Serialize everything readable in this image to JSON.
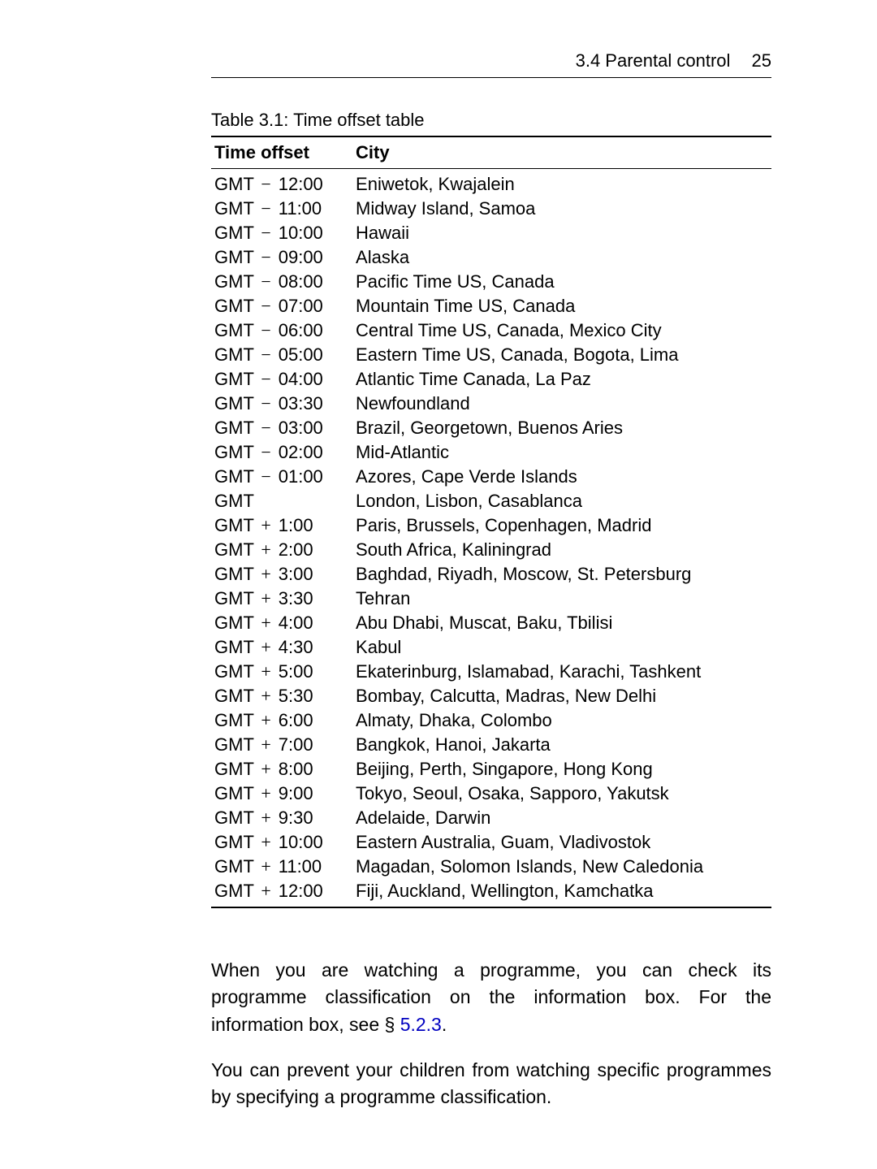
{
  "running_head": {
    "section": "3.4 Parental control",
    "page": "25"
  },
  "table": {
    "caption": "Table 3.1: Time offset table",
    "headers": {
      "offset": "Time offset",
      "city": "City"
    },
    "rows": [
      {
        "prefix": "GMT",
        "op": "−",
        "time": "12:00",
        "city": "Eniwetok, Kwajalein"
      },
      {
        "prefix": "GMT",
        "op": "−",
        "time": "11:00",
        "city": "Midway Island, Samoa"
      },
      {
        "prefix": "GMT",
        "op": "−",
        "time": "10:00",
        "city": "Hawaii"
      },
      {
        "prefix": "GMT",
        "op": "−",
        "time": "09:00",
        "city": "Alaska"
      },
      {
        "prefix": "GMT",
        "op": "−",
        "time": "08:00",
        "city": "Pacific Time US, Canada"
      },
      {
        "prefix": "GMT",
        "op": "−",
        "time": "07:00",
        "city": "Mountain Time US, Canada"
      },
      {
        "prefix": "GMT",
        "op": "−",
        "time": "06:00",
        "city": "Central Time US, Canada, Mexico City"
      },
      {
        "prefix": "GMT",
        "op": "−",
        "time": "05:00",
        "city": "Eastern Time US, Canada, Bogota, Lima"
      },
      {
        "prefix": "GMT",
        "op": "−",
        "time": "04:00",
        "city": "Atlantic Time Canada, La Paz"
      },
      {
        "prefix": "GMT",
        "op": "−",
        "time": "03:30",
        "city": "Newfoundland"
      },
      {
        "prefix": "GMT",
        "op": "−",
        "time": "03:00",
        "city": "Brazil, Georgetown, Buenos Aries"
      },
      {
        "prefix": "GMT",
        "op": "−",
        "time": "02:00",
        "city": "Mid-Atlantic"
      },
      {
        "prefix": "GMT",
        "op": "−",
        "time": "01:00",
        "city": "Azores, Cape Verde Islands"
      },
      {
        "prefix": "GMT",
        "op": "",
        "time": "",
        "city": "London, Lisbon, Casablanca"
      },
      {
        "prefix": "GMT",
        "op": "+",
        "time": "1:00",
        "city": "Paris, Brussels, Copenhagen, Madrid"
      },
      {
        "prefix": "GMT",
        "op": "+",
        "time": "2:00",
        "city": "South Africa, Kaliningrad"
      },
      {
        "prefix": "GMT",
        "op": "+",
        "time": "3:00",
        "city": "Baghdad, Riyadh, Moscow, St. Petersburg"
      },
      {
        "prefix": "GMT",
        "op": "+",
        "time": "3:30",
        "city": "Tehran"
      },
      {
        "prefix": "GMT",
        "op": "+",
        "time": "4:00",
        "city": "Abu Dhabi, Muscat, Baku, Tbilisi"
      },
      {
        "prefix": "GMT",
        "op": "+",
        "time": "4:30",
        "city": "Kabul"
      },
      {
        "prefix": "GMT",
        "op": "+",
        "time": "5:00",
        "city": "Ekaterinburg, Islamabad, Karachi, Tashkent"
      },
      {
        "prefix": "GMT",
        "op": "+",
        "time": "5:30",
        "city": "Bombay, Calcutta, Madras, New Delhi"
      },
      {
        "prefix": "GMT",
        "op": "+",
        "time": "6:00",
        "city": "Almaty, Dhaka, Colombo"
      },
      {
        "prefix": "GMT",
        "op": "+",
        "time": "7:00",
        "city": "Bangkok, Hanoi, Jakarta"
      },
      {
        "prefix": "GMT",
        "op": "+",
        "time": "8:00",
        "city": "Beijing, Perth, Singapore, Hong Kong"
      },
      {
        "prefix": "GMT",
        "op": "+",
        "time": "9:00",
        "city": "Tokyo, Seoul, Osaka, Sapporo, Yakutsk"
      },
      {
        "prefix": "GMT",
        "op": "+",
        "time": "9:30",
        "city": "Adelaide, Darwin"
      },
      {
        "prefix": "GMT",
        "op": "+",
        "time": "10:00",
        "city": "Eastern Australia, Guam, Vladivostok"
      },
      {
        "prefix": "GMT",
        "op": "+",
        "time": "11:00",
        "city": "Magadan, Solomon Islands, New Caledonia"
      },
      {
        "prefix": "GMT",
        "op": "+",
        "time": "12:00",
        "city": "Fiji, Auckland, Wellington, Kamchatka"
      }
    ]
  },
  "body": {
    "p1_a": "When you are watching a programme, you can check its programme classification on the information box. For the information box, see § ",
    "p1_link": "5.2.3",
    "p1_b": ".",
    "p2": "You can prevent your children from watching specific programmes by specifying a programme classification."
  },
  "style": {
    "link_color": "#0000c0"
  }
}
